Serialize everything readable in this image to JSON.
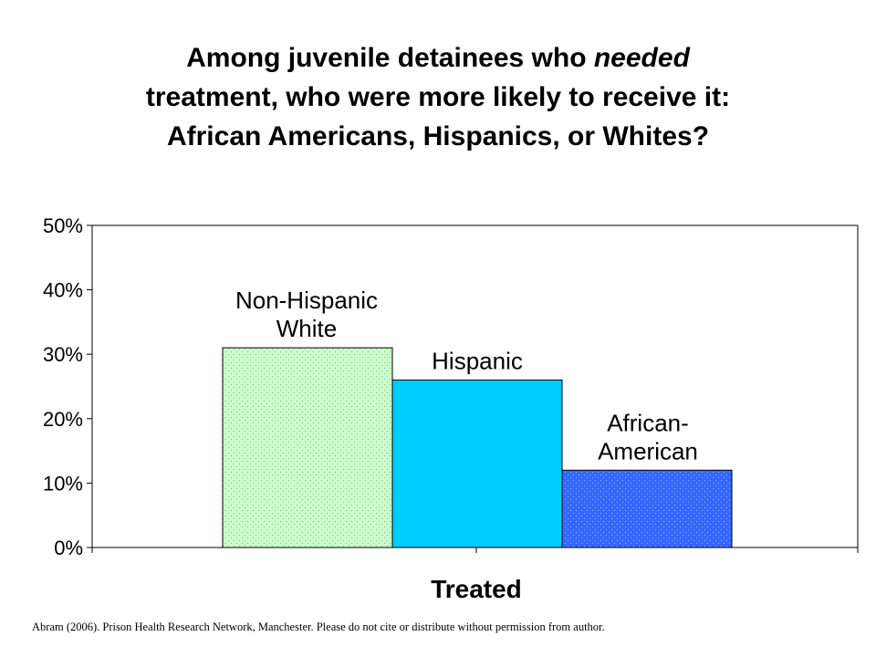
{
  "title": {
    "line1_before": "Among juvenile detainees who ",
    "line1_emphasis": "needed",
    "line2": "treatment, who were more likely to receive it:",
    "line3": "African Americans, Hispanics, or Whites?"
  },
  "colors": {
    "non_hispanic_white": "#ccffcc",
    "hispanic": "#00ccff",
    "african_american": "#3366ff"
  },
  "chart_data": {
    "type": "bar",
    "categories": [
      "Treated"
    ],
    "xlabel": "Treated",
    "ylabel": "",
    "ylim": [
      0,
      50
    ],
    "yticks": [
      "0%",
      "10%",
      "20%",
      "30%",
      "40%",
      "50%"
    ],
    "grid": false,
    "legend": "none",
    "series": [
      {
        "name": "Non-Hispanic White",
        "label_lines": [
          "Non-Hispanic",
          "White"
        ],
        "values": [
          31
        ]
      },
      {
        "name": "Hispanic",
        "label_lines": [
          "Hispanic"
        ],
        "values": [
          26
        ]
      },
      {
        "name": "African-American",
        "label_lines": [
          "African-",
          "American"
        ],
        "values": [
          12
        ]
      }
    ]
  },
  "footnote": "Abram (2006). Prison Health Research Network, Manchester.  Please do not cite or distribute without permission  from author."
}
